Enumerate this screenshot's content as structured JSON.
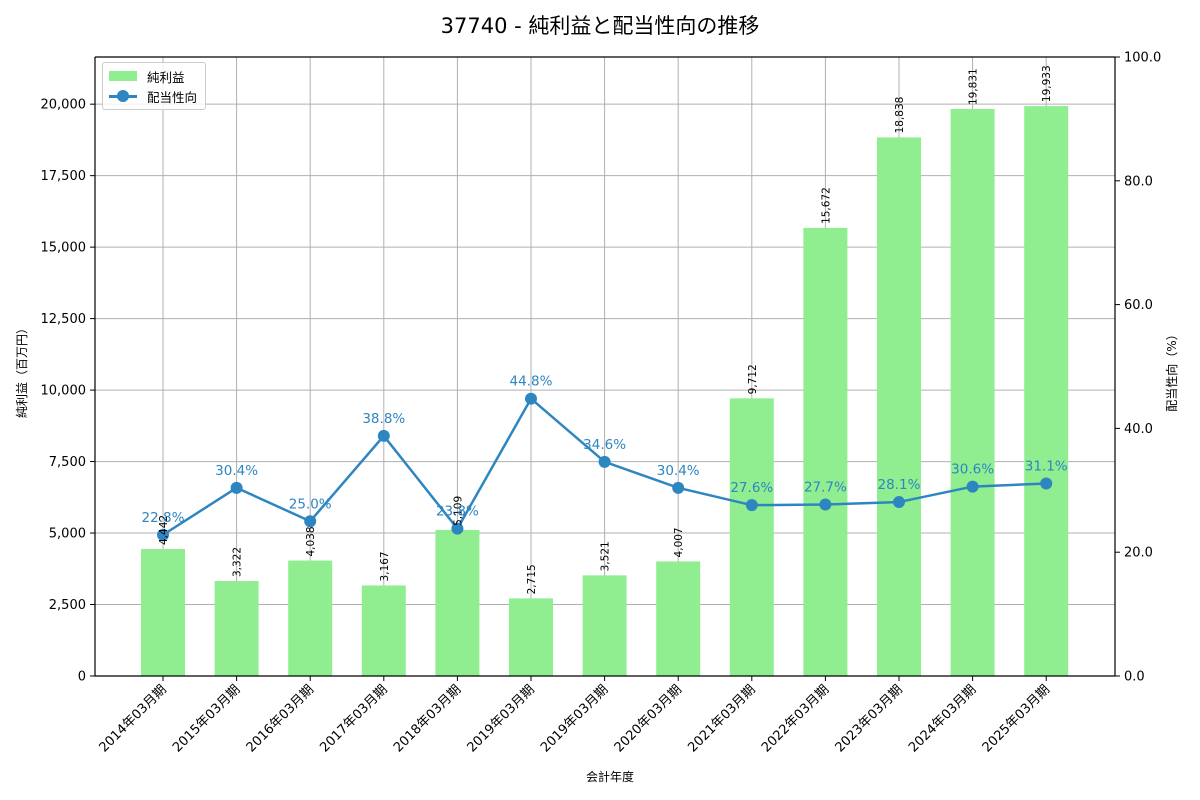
{
  "chart_data": {
    "type": "bar+line",
    "title": "37740 - 純利益と配当性向の推移",
    "xlabel": "会計年度",
    "ylabel_left": "純利益（百万円）",
    "ylabel_right": "配当性向（%）",
    "categories": [
      "2014年03月期",
      "2015年03月期",
      "2016年03月期",
      "2017年03月期",
      "2018年03月期",
      "2019年03月期",
      "2019年03月期",
      "2020年03月期",
      "2021年03月期",
      "2022年03月期",
      "2023年03月期",
      "2024年03月期",
      "2025年03月期"
    ],
    "series": [
      {
        "name": "純利益",
        "type": "bar",
        "axis": "left",
        "color": "#90ee90",
        "values": [
          4442,
          3322,
          4038,
          3167,
          5109,
          2715,
          3521,
          4007,
          9712,
          15672,
          18838,
          19831,
          19933
        ],
        "labels": [
          "4,442",
          "3,322",
          "4,038",
          "3,167",
          "5,109",
          "2,715",
          "3,521",
          "4,007",
          "9,712",
          "15,672",
          "18,838",
          "19,831",
          "19,933"
        ]
      },
      {
        "name": "配当性向",
        "type": "line",
        "axis": "right",
        "color": "#2e86c1",
        "values": [
          22.8,
          30.4,
          25.0,
          38.8,
          23.8,
          44.8,
          34.6,
          30.4,
          27.6,
          27.7,
          28.1,
          30.6,
          31.1
        ],
        "labels": [
          "22.8%",
          "30.4%",
          "25.0%",
          "38.8%",
          "23.8%",
          "44.8%",
          "34.6%",
          "30.4%",
          "27.6%",
          "27.7%",
          "28.1%",
          "30.6%",
          "31.1%"
        ]
      }
    ],
    "ylim_left": [
      0,
      21650
    ],
    "yticks_left": [
      "0",
      "2,500",
      "5,000",
      "7,500",
      "10,000",
      "12,500",
      "15,000",
      "17,500",
      "20,000"
    ],
    "ylim_right": [
      0,
      100
    ],
    "yticks_right": [
      "0.0",
      "20.0",
      "40.0",
      "60.0",
      "80.0",
      "100.0"
    ],
    "grid": true,
    "legend_position": "upper left"
  },
  "legend": {
    "bar_label": "純利益",
    "line_label": "配当性向"
  }
}
